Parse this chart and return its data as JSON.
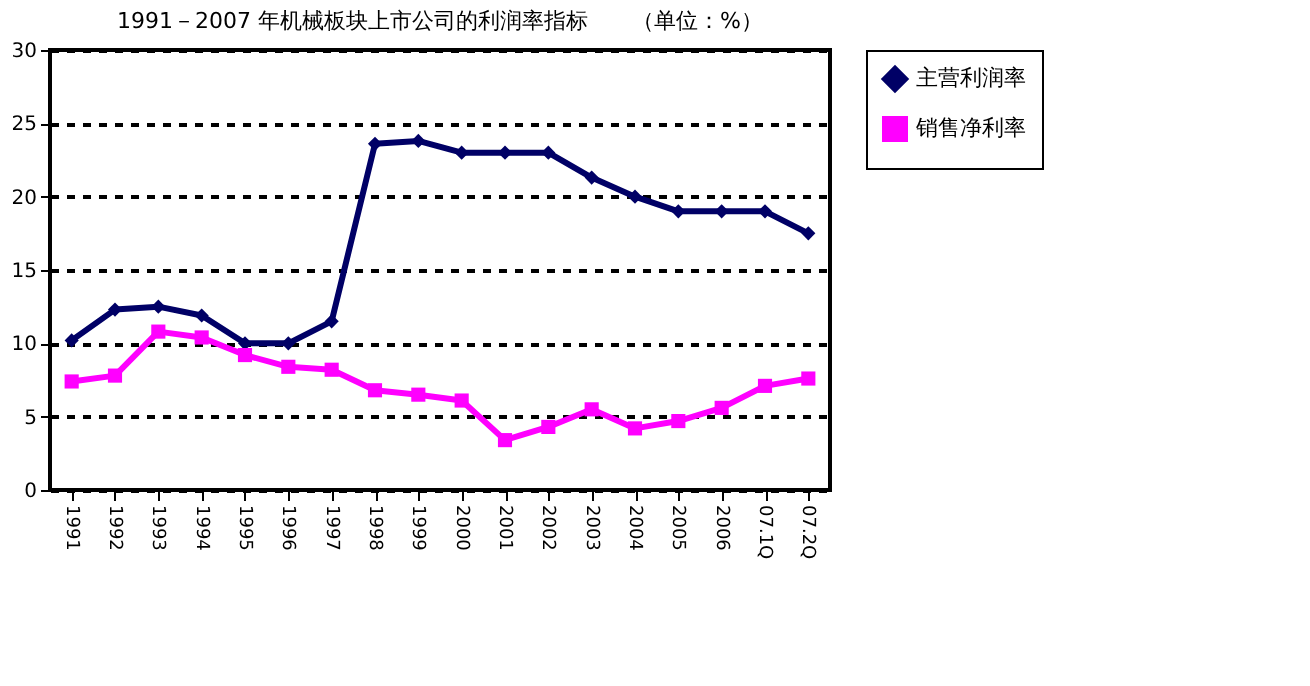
{
  "chart_data": {
    "type": "line",
    "title": "1991－2007 年机械板块上市公司的利润率指标　　（单位：%）",
    "categories": [
      "1991",
      "1992",
      "1993",
      "1994",
      "1995",
      "1996",
      "1997",
      "1998",
      "1999",
      "2000",
      "2001",
      "2002",
      "2003",
      "2004",
      "2005",
      "2006",
      "07.1Q",
      "07.2Q"
    ],
    "series": [
      {
        "name": "主营利润率",
        "color": "#000066",
        "marker": "diamond",
        "values": [
          10.2,
          12.3,
          12.5,
          11.9,
          10.0,
          10.0,
          11.5,
          23.6,
          23.8,
          23.0,
          23.0,
          23.0,
          21.3,
          20.0,
          19.0,
          19.0,
          19.0,
          17.5
        ]
      },
      {
        "name": "销售净利率",
        "color": "#ff00ff",
        "marker": "square",
        "values": [
          7.4,
          7.8,
          10.8,
          10.4,
          9.2,
          8.4,
          8.2,
          6.8,
          6.5,
          6.1,
          3.4,
          4.3,
          5.5,
          4.2,
          4.7,
          5.6,
          7.1,
          7.6
        ]
      }
    ],
    "ylim": [
      0,
      30
    ],
    "yticks": [
      0,
      5,
      10,
      15,
      20,
      25,
      30
    ],
    "grid": "y",
    "legend": "right",
    "line_style": "solid"
  }
}
